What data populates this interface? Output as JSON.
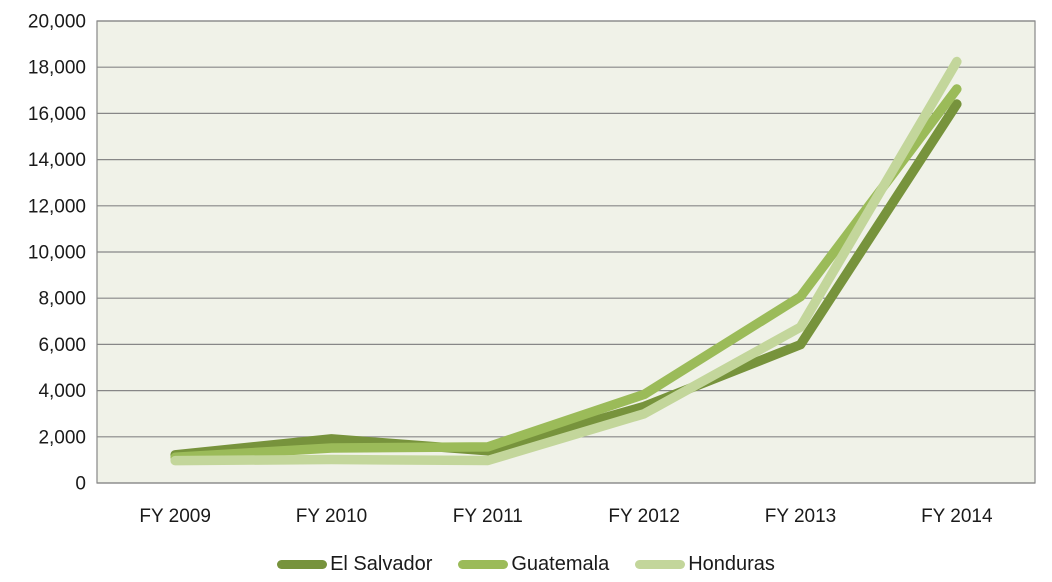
{
  "chart_data": {
    "type": "line",
    "title": "",
    "xlabel": "",
    "ylabel": "",
    "categories": [
      "FY 2009",
      "FY 2010",
      "FY 2011",
      "FY 2012",
      "FY 2013",
      "FY 2014"
    ],
    "series": [
      {
        "name": "El Salvador",
        "color": "#77933C",
        "values": [
          1221,
          1910,
          1394,
          3314,
          5990,
          16404
        ]
      },
      {
        "name": "Guatemala",
        "color": "#9BBB59",
        "values": [
          1115,
          1517,
          1565,
          3835,
          8068,
          17057
        ]
      },
      {
        "name": "Honduras",
        "color": "#C3D69B",
        "values": [
          968,
          1017,
          974,
          2997,
          6747,
          18244
        ]
      }
    ],
    "ylim": [
      0,
      20000
    ],
    "ytick_step": 2000,
    "ytick_labels": [
      "0",
      "2,000",
      "4,000",
      "6,000",
      "8,000",
      "10,000",
      "12,000",
      "14,000",
      "16,000",
      "18,000",
      "20,000"
    ],
    "grid": true,
    "legend_position": "bottom"
  },
  "style": {
    "plot_bg": "#F0F2E8",
    "grid_color": "#878787",
    "axis_border_color": "#878787",
    "text_color": "#1a1a1a",
    "page_bg": "#FFFFFF",
    "line_width": 9.5
  }
}
